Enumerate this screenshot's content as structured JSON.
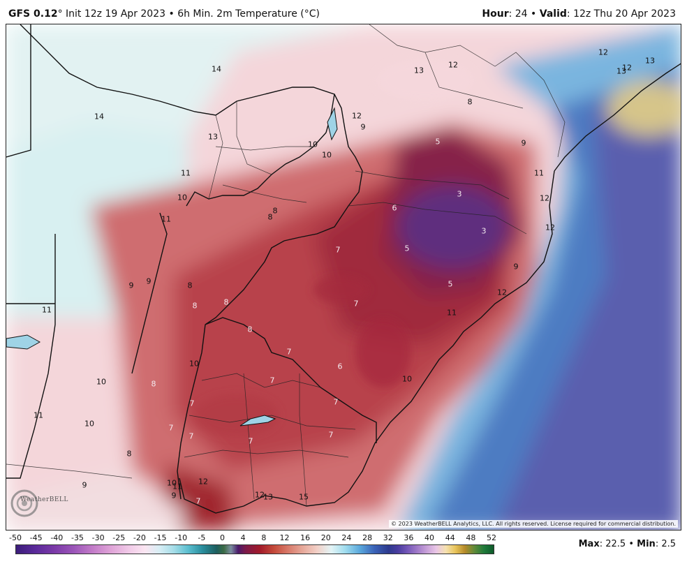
{
  "header": {
    "model": "GFS 0.12",
    "degree": "°",
    "init_text": "Init 12z 19 Apr 2023",
    "bullet": "•",
    "field": "6h Min. 2m Temperature (°C)",
    "hour_label": "Hour",
    "hour_value": ": 24",
    "valid_label": "Valid",
    "valid_value": ": 12z Thu 20 Apr 2023"
  },
  "copyright": "© 2023 WeatherBELL Analytics, LLC. All rights reserved. License required for commercial distribution.",
  "logo_text": "WeatherBELL",
  "legend": {
    "ticks": [
      "-50",
      "-45",
      "-40",
      "-35",
      "-30",
      "-25",
      "-20",
      "-15",
      "-10",
      "-5",
      "0",
      "4",
      "8",
      "12",
      "16",
      "20",
      "24",
      "28",
      "32",
      "36",
      "40",
      "44",
      "48",
      "52"
    ]
  },
  "stats": {
    "max_label": "Max",
    "max_value": ": 22.5",
    "sep": "•",
    "min_label": "Min",
    "min_value": ": 2.5"
  },
  "colors": {
    "cold_purple": "#5e2d7e",
    "deep_red": "#9e2535",
    "mid_red": "#c85a5e",
    "light_pink": "#f4d2d8",
    "pale_cyan": "#d6f1f2",
    "ocean_blue": "#4e78c0",
    "ocean_purple": "#5a5fae"
  },
  "map_labels": [
    {
      "text": "14",
      "tone": "dark"
    },
    {
      "text": "13",
      "tone": "dark"
    },
    {
      "text": "12",
      "tone": "dark"
    },
    {
      "text": "12",
      "tone": "dark"
    },
    {
      "text": "13",
      "tone": "dark"
    },
    {
      "text": "12",
      "tone": "dark"
    },
    {
      "text": "13",
      "tone": "dark"
    },
    {
      "text": "14",
      "tone": "dark"
    },
    {
      "text": "8",
      "tone": "dark"
    },
    {
      "text": "12",
      "tone": "dark"
    },
    {
      "text": "9",
      "tone": "dark"
    },
    {
      "text": "13",
      "tone": "dark"
    },
    {
      "text": "10",
      "tone": "dark"
    },
    {
      "text": "5",
      "tone": "light"
    },
    {
      "text": "9",
      "tone": "dark"
    },
    {
      "text": "10",
      "tone": "dark"
    },
    {
      "text": "11",
      "tone": "dark"
    },
    {
      "text": "11",
      "tone": "dark"
    },
    {
      "text": "3",
      "tone": "light"
    },
    {
      "text": "10",
      "tone": "dark"
    },
    {
      "text": "12",
      "tone": "dark"
    },
    {
      "text": "11",
      "tone": "dark"
    },
    {
      "text": "6",
      "tone": "light"
    },
    {
      "text": "8",
      "tone": "dark"
    },
    {
      "text": "8",
      "tone": "dark"
    },
    {
      "text": "3",
      "tone": "light"
    },
    {
      "text": "12",
      "tone": "dark"
    },
    {
      "text": "7",
      "tone": "light"
    },
    {
      "text": "5",
      "tone": "light"
    },
    {
      "text": "9",
      "tone": "dark"
    },
    {
      "text": "9",
      "tone": "dark"
    },
    {
      "text": "9",
      "tone": "dark"
    },
    {
      "text": "8",
      "tone": "dark"
    },
    {
      "text": "5",
      "tone": "light"
    },
    {
      "text": "12",
      "tone": "dark"
    },
    {
      "text": "8",
      "tone": "light"
    },
    {
      "text": "8",
      "tone": "light"
    },
    {
      "text": "7",
      "tone": "light"
    },
    {
      "text": "11",
      "tone": "dark"
    },
    {
      "text": "11",
      "tone": "dark"
    },
    {
      "text": "8",
      "tone": "light"
    },
    {
      "text": "7",
      "tone": "light"
    },
    {
      "text": "6",
      "tone": "light"
    },
    {
      "text": "10",
      "tone": "dark"
    },
    {
      "text": "10",
      "tone": "dark"
    },
    {
      "text": "7",
      "tone": "light"
    },
    {
      "text": "10",
      "tone": "dark"
    },
    {
      "text": "8",
      "tone": "light"
    },
    {
      "text": "7",
      "tone": "light"
    },
    {
      "text": "7",
      "tone": "light"
    },
    {
      "text": "11",
      "tone": "dark"
    },
    {
      "text": "7",
      "tone": "light"
    },
    {
      "text": "10",
      "tone": "dark"
    },
    {
      "text": "7",
      "tone": "light"
    },
    {
      "text": "7",
      "tone": "light"
    },
    {
      "text": "7",
      "tone": "light"
    },
    {
      "text": "8",
      "tone": "dark"
    },
    {
      "text": "9",
      "tone": "dark"
    },
    {
      "text": "10",
      "tone": "dark"
    },
    {
      "text": "11",
      "tone": "dark"
    },
    {
      "text": "12",
      "tone": "dark"
    },
    {
      "text": "9",
      "tone": "dark"
    },
    {
      "text": "12",
      "tone": "dark"
    },
    {
      "text": "13",
      "tone": "dark"
    },
    {
      "text": "15",
      "tone": "dark"
    },
    {
      "text": "7",
      "tone": "light"
    }
  ]
}
